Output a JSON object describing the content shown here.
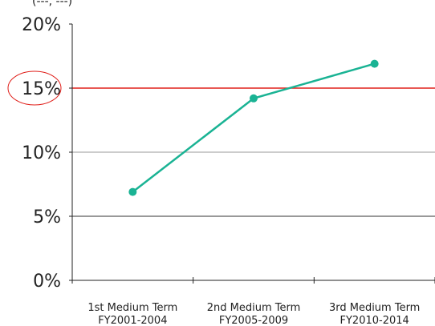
{
  "cut_text": "(---, ---)",
  "chart_data": {
    "type": "line",
    "categories": [
      [
        "1st Medium Term",
        "FY2001-2004"
      ],
      [
        "2nd Medium Term",
        "FY2005-2009"
      ],
      [
        "3rd Medium Term",
        "FY2010-2014"
      ]
    ],
    "series": [
      {
        "values": [
          6.9,
          14.2,
          16.9
        ],
        "color": "#1ab394"
      }
    ],
    "ylim": [
      0,
      20
    ],
    "yticks": [
      "0%",
      "5%",
      "10%",
      "15%",
      "20%"
    ],
    "ytick_values": [
      0,
      5,
      10,
      15,
      20
    ],
    "reference_line": {
      "value": 15,
      "color": "#e0201b"
    },
    "highlighted_tick": "15%",
    "gridlines": [
      {
        "value": 5,
        "color": "#333333"
      },
      {
        "value": 10,
        "color": "#9a9a9a"
      }
    ],
    "title": "",
    "xlabel": "",
    "ylabel": ""
  }
}
